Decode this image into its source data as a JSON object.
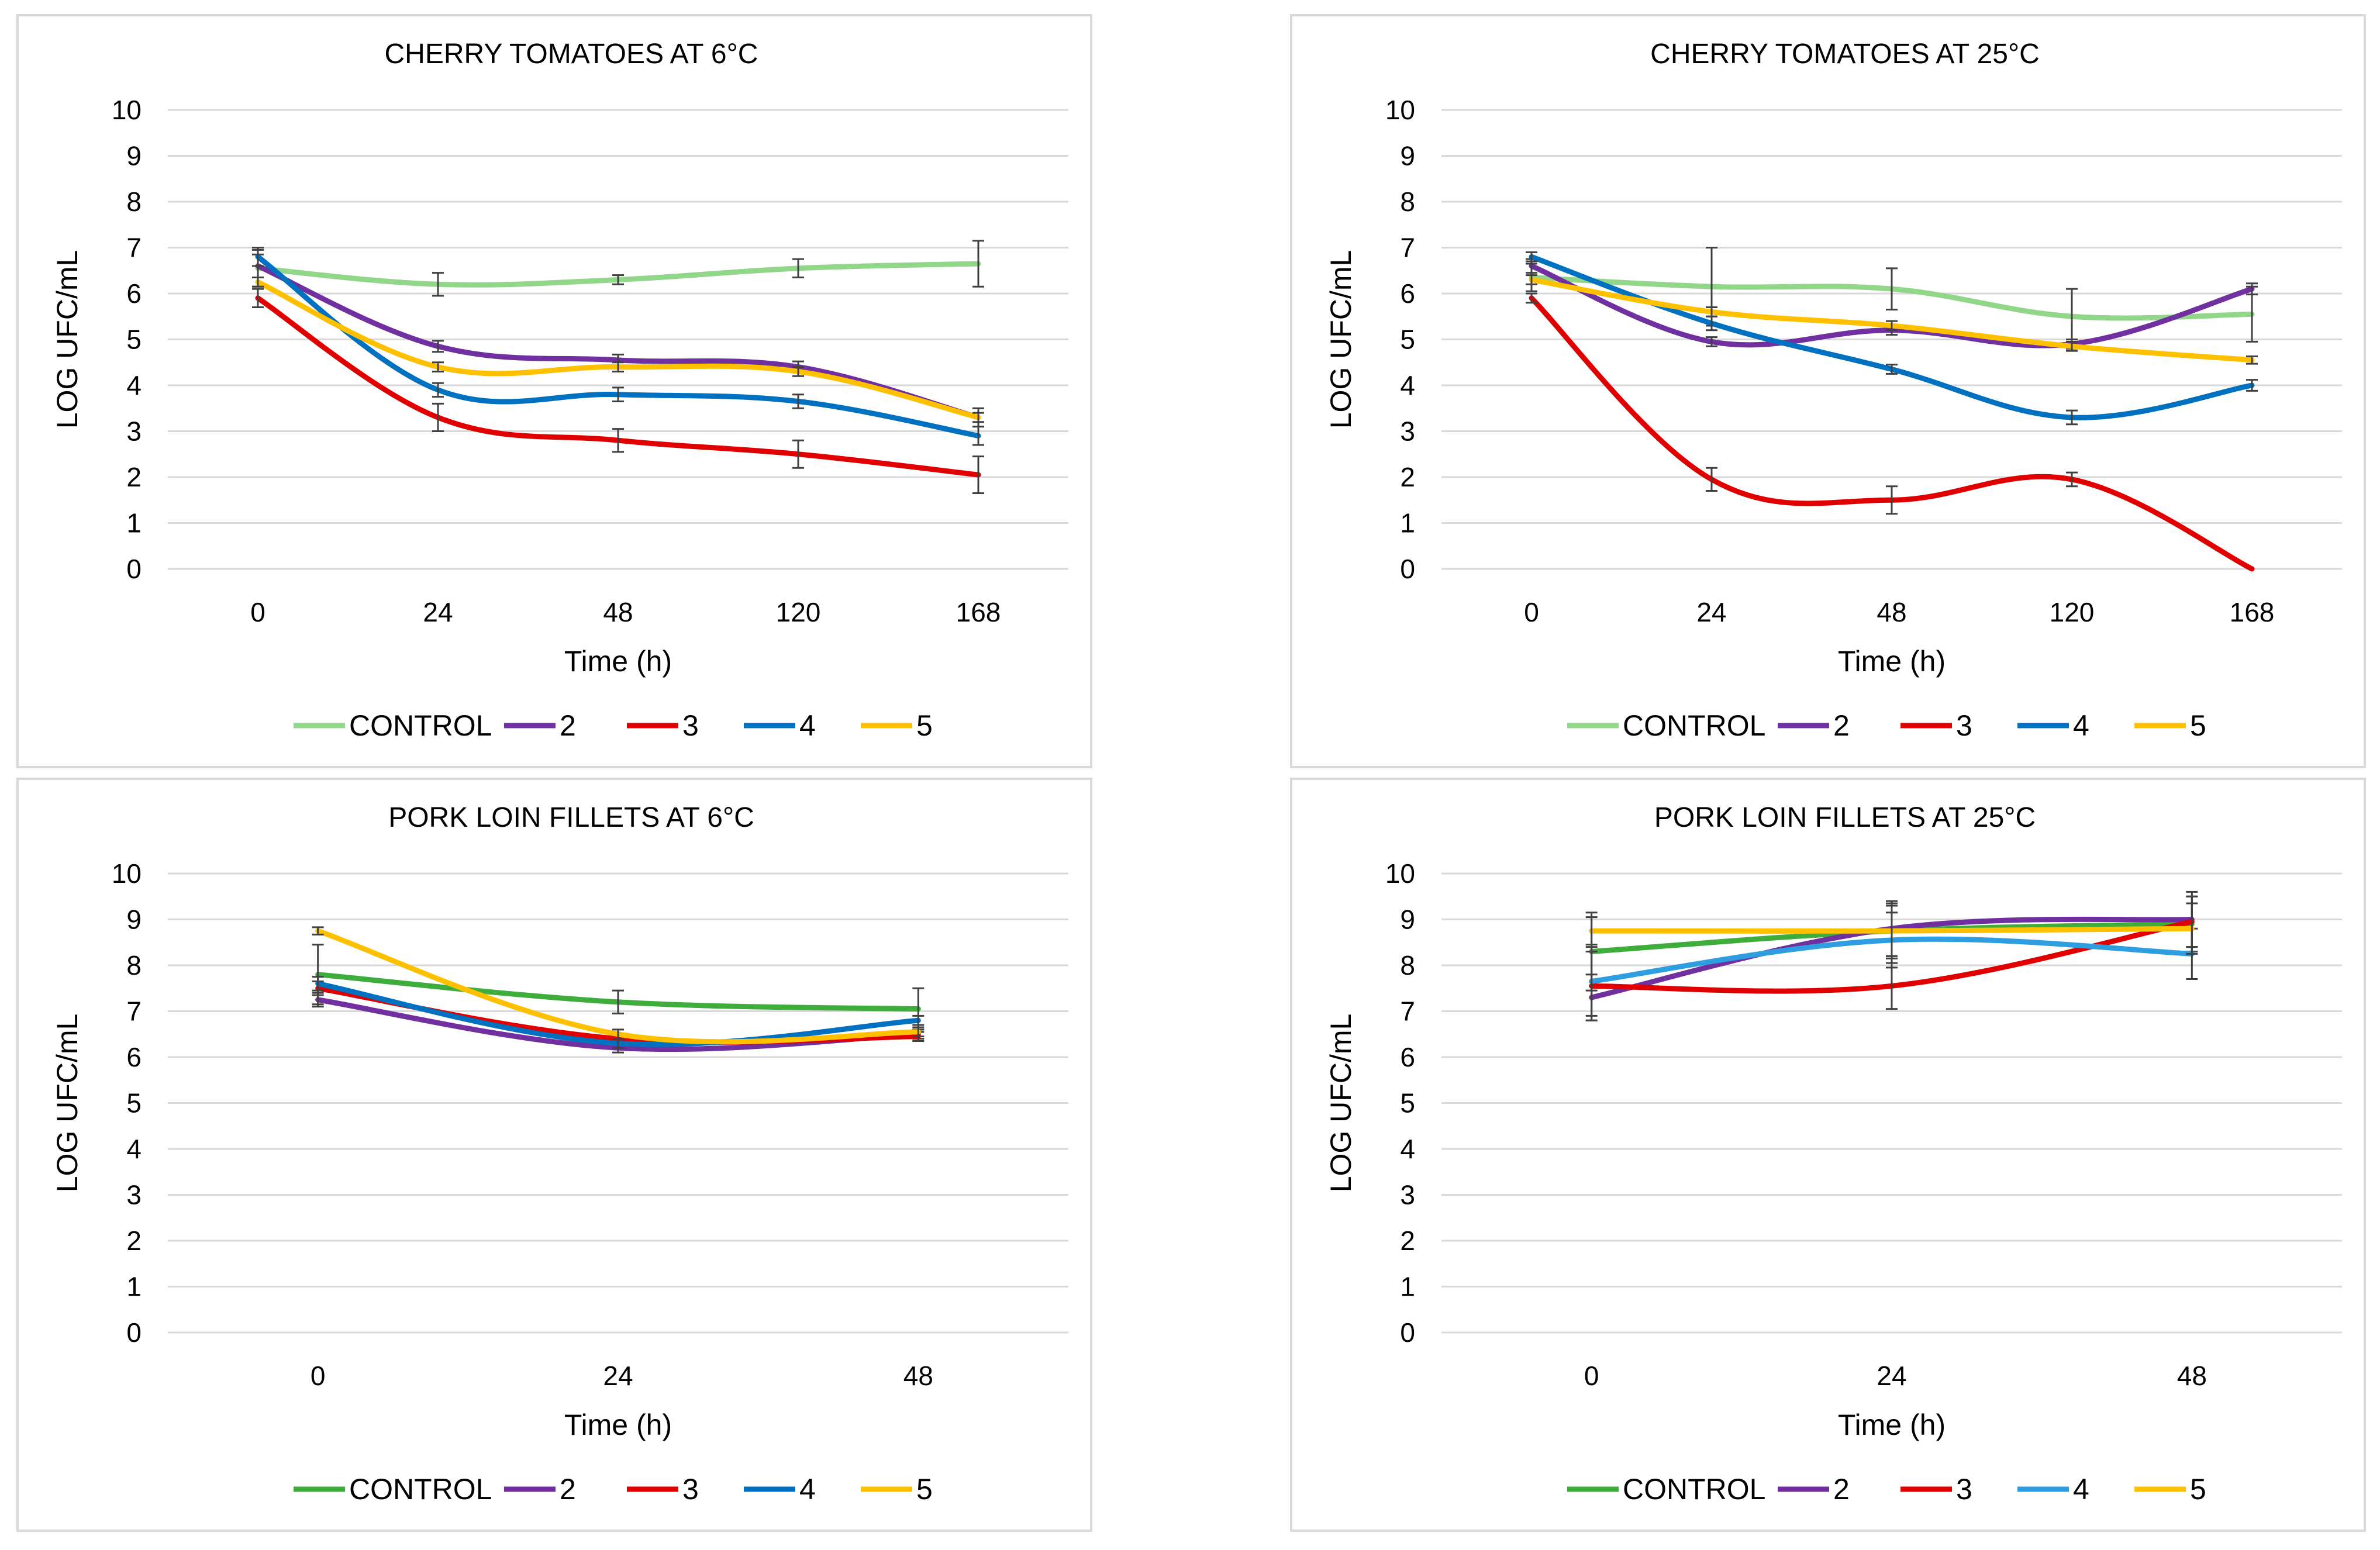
{
  "chart_data": [
    {
      "type": "line",
      "title": "CHERRY TOMATOES AT 6°C",
      "xlabel": "Time (h)",
      "ylabel": "LOG UFC/mL",
      "ylim": [
        0,
        10
      ],
      "yticks": [
        "0",
        "1",
        "2",
        "3",
        "4",
        "5",
        "6",
        "7",
        "8",
        "9",
        "10"
      ],
      "categories": [
        "0",
        "24",
        "48",
        "120",
        "168"
      ],
      "grid": true,
      "legend_position": "bottom",
      "series": [
        {
          "name": "CONTROL",
          "color": "#92d68a",
          "values": [
            6.55,
            6.2,
            6.3,
            6.55,
            6.65
          ],
          "errors": [
            0.4,
            0.25,
            0.1,
            0.2,
            0.5
          ]
        },
        {
          "name": "2",
          "color": "#7030a0",
          "values": [
            6.6,
            4.85,
            4.55,
            4.4,
            3.3
          ],
          "errors": [
            0.25,
            0.12,
            0.12,
            0.12,
            0.2
          ]
        },
        {
          "name": "3",
          "color": "#e00000",
          "values": [
            5.9,
            3.3,
            2.8,
            2.5,
            2.05
          ],
          "errors": [
            0.2,
            0.3,
            0.25,
            0.3,
            0.4
          ]
        },
        {
          "name": "4",
          "color": "#0070c0",
          "values": [
            6.8,
            3.9,
            3.8,
            3.65,
            2.9
          ],
          "errors": [
            0.2,
            0.15,
            0.15,
            0.15,
            0.2
          ]
        },
        {
          "name": "5",
          "color": "#ffc000",
          "values": [
            6.25,
            4.4,
            4.4,
            4.3,
            3.3
          ],
          "errors": [
            0.1,
            0.1,
            0.1,
            0.1,
            0.1
          ]
        }
      ]
    },
    {
      "type": "line",
      "title": "CHERRY TOMATOES AT 25°C",
      "xlabel": "Time (h)",
      "ylabel": "LOG UFC/mL",
      "ylim": [
        0,
        10
      ],
      "yticks": [
        "0",
        "1",
        "2",
        "3",
        "4",
        "5",
        "6",
        "7",
        "8",
        "9",
        "10"
      ],
      "categories": [
        "0",
        "24",
        "48",
        "120",
        "168"
      ],
      "grid": true,
      "legend_position": "bottom",
      "series": [
        {
          "name": "CONTROL",
          "color": "#92d68a",
          "values": [
            6.35,
            6.15,
            6.1,
            5.5,
            5.55
          ],
          "errors": [
            0.3,
            0.85,
            0.45,
            0.6,
            0.6
          ]
        },
        {
          "name": "2",
          "color": "#7030a0",
          "values": [
            6.6,
            4.95,
            5.2,
            4.9,
            6.1
          ],
          "errors": [
            0.15,
            0.1,
            0.1,
            0.1,
            0.12
          ]
        },
        {
          "name": "3",
          "color": "#e00000",
          "values": [
            5.9,
            1.95,
            1.5,
            1.95,
            0
          ],
          "errors": [
            0.1,
            0.25,
            0.3,
            0.15,
            0
          ]
        },
        {
          "name": "4",
          "color": "#0070c0",
          "values": [
            6.8,
            5.35,
            4.35,
            3.3,
            4.0
          ],
          "errors": [
            0.1,
            0.15,
            0.1,
            0.15,
            0.12
          ]
        },
        {
          "name": "5",
          "color": "#ffc000",
          "values": [
            6.3,
            5.6,
            5.3,
            4.85,
            4.55
          ],
          "errors": [
            0.1,
            0.1,
            0.1,
            0.1,
            0.08
          ]
        }
      ]
    },
    {
      "type": "line",
      "title": "PORK LOIN FILLETS AT 6°C",
      "xlabel": "Time (h)",
      "ylabel": "LOG UFC/mL",
      "ylim": [
        0,
        10
      ],
      "yticks": [
        "0",
        "1",
        "2",
        "3",
        "4",
        "5",
        "6",
        "7",
        "8",
        "9",
        "10"
      ],
      "categories": [
        "0",
        "24",
        "48"
      ],
      "grid": true,
      "legend_position": "bottom",
      "series": [
        {
          "name": "CONTROL",
          "color": "#3fad3c",
          "values": [
            7.8,
            7.2,
            7.05
          ],
          "errors": [
            0.65,
            0.25,
            0.45
          ]
        },
        {
          "name": "2",
          "color": "#7030a0",
          "values": [
            7.25,
            6.2,
            6.5
          ],
          "errors": [
            0.15,
            0.1,
            0.1
          ]
        },
        {
          "name": "3",
          "color": "#e00000",
          "values": [
            7.5,
            6.4,
            6.45
          ],
          "errors": [
            0.15,
            0.1,
            0.1
          ]
        },
        {
          "name": "4",
          "color": "#0070c0",
          "values": [
            7.6,
            6.3,
            6.8
          ],
          "errors": [
            0.15,
            0.1,
            0.1
          ]
        },
        {
          "name": "5",
          "color": "#ffc000",
          "values": [
            8.75,
            6.5,
            6.55
          ],
          "errors": [
            0.08,
            0.1,
            0.1
          ]
        }
      ]
    },
    {
      "type": "line",
      "title": "PORK LOIN FILLETS AT 25°C",
      "xlabel": "Time (h)",
      "ylabel": "LOG UFC/mL",
      "ylim": [
        0,
        10
      ],
      "yticks": [
        "0",
        "1",
        "2",
        "3",
        "4",
        "5",
        "6",
        "7",
        "8",
        "9",
        "10"
      ],
      "categories": [
        "0",
        "24",
        "48"
      ],
      "grid": true,
      "legend_position": "bottom",
      "series": [
        {
          "name": "CONTROL",
          "color": "#3fad3c",
          "values": [
            8.3,
            8.75,
            8.9
          ],
          "errors": [
            0.85,
            0.55,
            0.6
          ]
        },
        {
          "name": "2",
          "color": "#7030a0",
          "values": [
            7.3,
            8.8,
            9.0
          ],
          "errors": [
            0.5,
            0.6,
            0.6
          ]
        },
        {
          "name": "3",
          "color": "#e00000",
          "values": [
            7.55,
            7.55,
            8.95
          ],
          "errors": [
            0.75,
            0.5,
            0.55
          ]
        },
        {
          "name": "4",
          "color": "#2e9ee0",
          "values": [
            7.65,
            8.55,
            8.25
          ],
          "errors": [
            0.75,
            0.6,
            0.55
          ]
        },
        {
          "name": "5",
          "color": "#ffc000",
          "values": [
            8.75,
            8.75,
            8.8
          ],
          "errors": [
            0.3,
            0.6,
            0.55
          ]
        }
      ]
    }
  ]
}
